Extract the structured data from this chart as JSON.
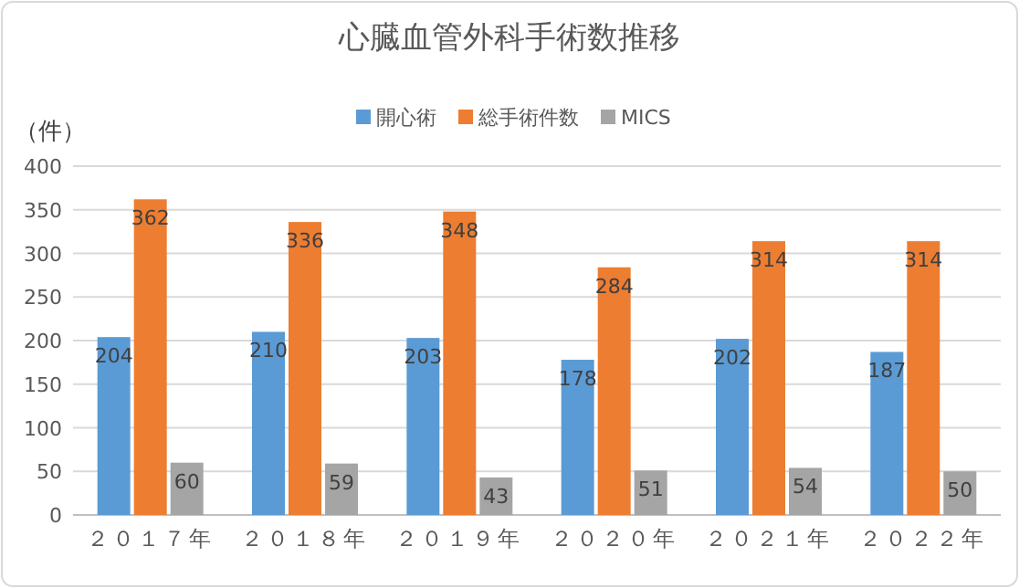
{
  "chart_data": {
    "type": "bar",
    "title": "心臓血管外科手術数推移",
    "ylabel": "（件）",
    "categories": [
      "２０１７年",
      "２０１８年",
      "２０１９年",
      "２０２０年",
      "２０２１年",
      "２０２２年"
    ],
    "series": [
      {
        "name": "開心術",
        "color": "#5b9bd5",
        "values": [
          204,
          210,
          203,
          178,
          202,
          187
        ]
      },
      {
        "name": "総手術件数",
        "color": "#ed7d31",
        "values": [
          362,
          336,
          348,
          284,
          314,
          314
        ]
      },
      {
        "name": "MICS",
        "color": "#a5a5a5",
        "values": [
          60,
          59,
          43,
          51,
          54,
          50
        ]
      }
    ],
    "ylim": [
      0,
      400
    ],
    "yticks": [
      0,
      50,
      100,
      150,
      200,
      250,
      300,
      350,
      400
    ],
    "grid": "y",
    "legend": "top",
    "data_labels": true
  }
}
